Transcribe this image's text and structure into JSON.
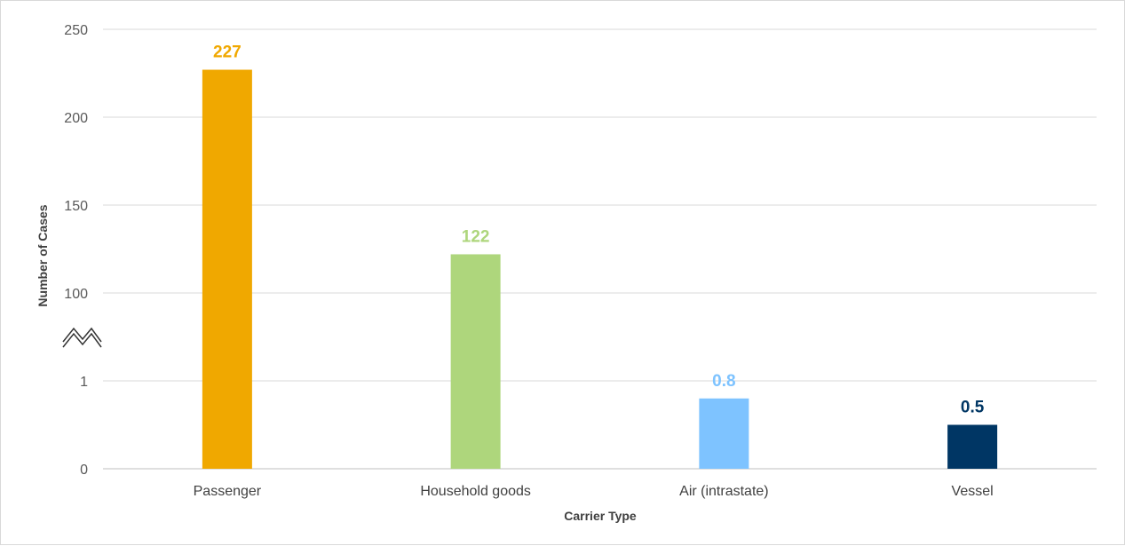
{
  "chart_data": {
    "type": "bar",
    "title": "",
    "xlabel": "Carrier Type",
    "ylabel": "Number of Cases",
    "categories": [
      "Passenger",
      "Household goods",
      "Air (intrastate)",
      "Vessel"
    ],
    "values": [
      227,
      122,
      0.8,
      0.5
    ],
    "data_labels": [
      "227",
      "122",
      "0.8",
      "0.5"
    ],
    "colors": [
      "#F0A800",
      "#AED67C",
      "#7EC3FF",
      "#003664"
    ],
    "y_axis": {
      "broken": true,
      "lower_segment": {
        "ticks": [
          "0",
          "1"
        ],
        "range": [
          0,
          1
        ]
      },
      "upper_segment": {
        "ticks": [
          "100",
          "150",
          "200",
          "250"
        ],
        "range": [
          100,
          250
        ]
      }
    },
    "grid": true,
    "legend": "none"
  }
}
